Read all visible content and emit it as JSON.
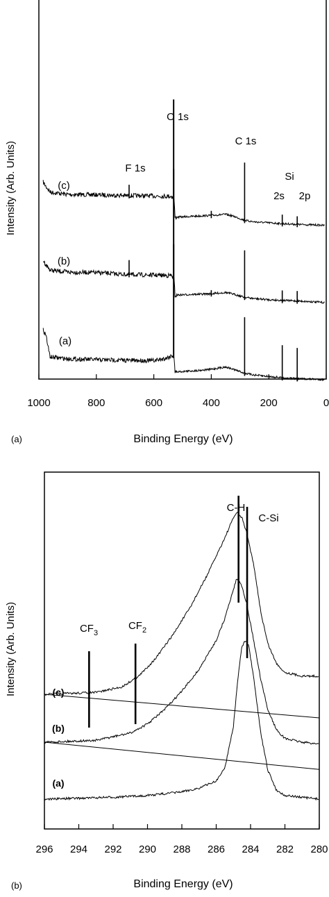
{
  "chart_data": [
    {
      "type": "line",
      "panel_label": "(a)",
      "xlabel": "Binding Energy (eV)",
      "ylabel": "Intensity (Arb. Units)",
      "xlim": [
        1000,
        0
      ],
      "x_ticks": [
        1000,
        800,
        600,
        400,
        200,
        0
      ],
      "x_tick_labels": [
        "1000",
        "800",
        "600",
        "400",
        "200",
        "0"
      ],
      "series": [
        {
          "name": "(c)",
          "points": [
            [
              985,
              2.6
            ],
            [
              975,
              2.35
            ],
            [
              960,
              2.05
            ],
            [
              900,
              1.92
            ],
            [
              800,
              1.9
            ],
            [
              700,
              1.86
            ],
            [
              600,
              1.84
            ],
            [
              540,
              1.82
            ],
            [
              530,
              1.75
            ],
            [
              526,
              0.65
            ],
            [
              520,
              0.66
            ],
            [
              450,
              0.72
            ],
            [
              400,
              0.76
            ],
            [
              350,
              0.82
            ],
            [
              320,
              0.7
            ],
            [
              283,
              0.48
            ],
            [
              250,
              0.4
            ],
            [
              200,
              0.35
            ],
            [
              150,
              0.3
            ],
            [
              100,
              0.26
            ],
            [
              20,
              0.22
            ],
            [
              5,
              0.2
            ]
          ],
          "peaks": [
            {
              "label": "F 1s",
              "x": 686,
              "height": 0.6
            },
            {
              "label": "O 1s",
              "x": 531,
              "height": 4.8
            },
            {
              "label": "C 1s",
              "x": 284,
              "height": 3.2
            },
            {
              "label": "Si 2s",
              "x": 153,
              "height": 0.5
            },
            {
              "label": "Si 2p",
              "x": 101,
              "height": 0.45
            },
            {
              "x": 400,
              "height": 0.25
            }
          ]
        },
        {
          "name": "(b)",
          "points": [
            [
              985,
              2.5
            ],
            [
              975,
              2.25
            ],
            [
              960,
              1.95
            ],
            [
              900,
              1.85
            ],
            [
              800,
              1.82
            ],
            [
              700,
              1.72
            ],
            [
              600,
              1.68
            ],
            [
              540,
              1.66
            ],
            [
              530,
              1.55
            ],
            [
              526,
              0.55
            ],
            [
              520,
              0.58
            ],
            [
              450,
              0.62
            ],
            [
              400,
              0.65
            ],
            [
              350,
              0.72
            ],
            [
              320,
              0.62
            ],
            [
              283,
              0.45
            ],
            [
              250,
              0.38
            ],
            [
              200,
              0.32
            ],
            [
              150,
              0.28
            ],
            [
              100,
              0.25
            ],
            [
              20,
              0.18
            ],
            [
              5,
              0.16
            ]
          ],
          "peaks": [
            {
              "label": "F 1s",
              "x": 686,
              "height": 0.8
            },
            {
              "label": "O 1s",
              "x": 531,
              "height": 4.8
            },
            {
              "label": "C 1s",
              "x": 284,
              "height": 2.6
            },
            {
              "label": "Si 2s",
              "x": 153,
              "height": 0.55
            },
            {
              "label": "Si 2p",
              "x": 101,
              "height": 0.55
            },
            {
              "x": 400,
              "height": 0.2
            }
          ]
        },
        {
          "name": "(a)",
          "points": [
            [
              985,
              2.8
            ],
            [
              975,
              2.5
            ],
            [
              965,
              1.6
            ],
            [
              960,
              1.3
            ],
            [
              900,
              1.2
            ],
            [
              800,
              1.15
            ],
            [
              700,
              1.12
            ],
            [
              600,
              1.1
            ],
            [
              560,
              1.22
            ],
            [
              540,
              1.35
            ],
            [
              530,
              1.4
            ],
            [
              526,
              0.45
            ],
            [
              520,
              0.48
            ],
            [
              450,
              0.55
            ],
            [
              400,
              0.62
            ],
            [
              350,
              0.75
            ],
            [
              320,
              0.6
            ],
            [
              283,
              0.4
            ],
            [
              250,
              0.3
            ],
            [
              200,
              0.22
            ],
            [
              150,
              0.15
            ],
            [
              100,
              0.1
            ],
            [
              20,
              0.06
            ],
            [
              5,
              0.05
            ]
          ],
          "peaks": [
            {
              "label": "O 1s",
              "x": 531,
              "height": 4.8
            },
            {
              "label": "C 1s",
              "x": 284,
              "height": 3.1
            },
            {
              "label": "Si 2s",
              "x": 153,
              "height": 1.8
            },
            {
              "label": "Si 2p",
              "x": 101,
              "height": 1.7
            }
          ]
        }
      ],
      "annotations": {
        "peak_labels": [
          "F 1s",
          "O 1s",
          "C 1s",
          "Si",
          "2s",
          "2p"
        ],
        "curve_labels": [
          "(c)",
          "(b)",
          "(a)"
        ]
      }
    },
    {
      "type": "line",
      "panel_label": "(b)",
      "xlabel": "Binding Energy (eV)",
      "ylabel": "Intensity (Arb. Units)",
      "xlim": [
        296,
        280
      ],
      "x_ticks": [
        296,
        294,
        292,
        290,
        288,
        286,
        284,
        282,
        280
      ],
      "x_tick_labels": [
        "296",
        "294",
        "292",
        "290",
        "288",
        "286",
        "284",
        "282",
        "280"
      ],
      "series": [
        {
          "name": "(c)",
          "points": [
            [
              296,
              0.0
            ],
            [
              293,
              0.01
            ],
            [
              291.5,
              0.04
            ],
            [
              290.5,
              0.1
            ],
            [
              289.5,
              0.2
            ],
            [
              288.5,
              0.33
            ],
            [
              287.5,
              0.48
            ],
            [
              286.5,
              0.66
            ],
            [
              285.5,
              0.86
            ],
            [
              285.0,
              0.97
            ],
            [
              284.8,
              1.0
            ],
            [
              284.5,
              0.97
            ],
            [
              284.2,
              0.88
            ],
            [
              283.8,
              0.7
            ],
            [
              283.4,
              0.45
            ],
            [
              283.0,
              0.28
            ],
            [
              282.5,
              0.17
            ],
            [
              282.0,
              0.12
            ],
            [
              281.0,
              0.1
            ],
            [
              280.0,
              0.1
            ]
          ],
          "baseline": [
            [
              296,
              0.0
            ],
            [
              280,
              -0.13
            ]
          ]
        },
        {
          "name": "(b)",
          "points": [
            [
              296,
              0.0
            ],
            [
              293,
              0.01
            ],
            [
              292,
              0.03
            ],
            [
              291,
              0.05
            ],
            [
              290,
              0.1
            ],
            [
              289,
              0.18
            ],
            [
              288,
              0.28
            ],
            [
              287,
              0.4
            ],
            [
              286,
              0.56
            ],
            [
              285.5,
              0.68
            ],
            [
              285.0,
              0.84
            ],
            [
              284.8,
              0.9
            ],
            [
              284.5,
              0.86
            ],
            [
              284.2,
              0.75
            ],
            [
              283.8,
              0.55
            ],
            [
              283.4,
              0.34
            ],
            [
              283.0,
              0.18
            ],
            [
              282.5,
              0.07
            ],
            [
              282.0,
              0.02
            ],
            [
              281.0,
              0.0
            ],
            [
              280.0,
              -0.01
            ]
          ],
          "baseline": [
            [
              296,
              0.0
            ],
            [
              280,
              -0.15
            ]
          ]
        },
        {
          "name": "(a)",
          "points": [
            [
              296,
              0.0
            ],
            [
              292,
              0.01
            ],
            [
              290,
              0.02
            ],
            [
              288,
              0.04
            ],
            [
              287,
              0.06
            ],
            [
              286,
              0.1
            ],
            [
              285.5,
              0.17
            ],
            [
              285.0,
              0.4
            ],
            [
              284.7,
              0.7
            ],
            [
              284.5,
              0.84
            ],
            [
              284.3,
              0.87
            ],
            [
              284.1,
              0.84
            ],
            [
              283.8,
              0.65
            ],
            [
              283.4,
              0.36
            ],
            [
              283.0,
              0.16
            ],
            [
              282.5,
              0.05
            ],
            [
              282.0,
              0.02
            ],
            [
              281.0,
              0.01
            ],
            [
              280.0,
              0.0
            ]
          ]
        }
      ],
      "markers": [
        {
          "label_main": "CF",
          "label_sub": "3",
          "x": 293.4
        },
        {
          "label_main": "CF",
          "label_sub": "2",
          "x": 290.7
        },
        {
          "label": "C-H",
          "x": 284.7
        },
        {
          "label": "C-Si",
          "x": 284.2
        }
      ]
    }
  ]
}
